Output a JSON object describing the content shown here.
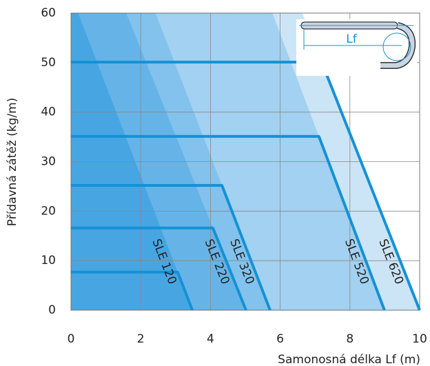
{
  "chart_data": {
    "type": "line",
    "x_label": "Samonosná délka Lf (m)",
    "y_label": "Přídavná zátěž (kg/m)",
    "inset_label": "Lf",
    "xlim": [
      0,
      10
    ],
    "xticks": [
      0,
      2,
      4,
      6,
      8,
      10
    ],
    "ylim": [
      0,
      60
    ],
    "yticks": [
      0,
      10,
      20,
      30,
      40,
      50,
      60
    ],
    "grid": true,
    "series": [
      {
        "name": "SLE 120",
        "color": "#1591d6",
        "x": [
          0,
          3.06,
          3.48
        ],
        "values": [
          7.7,
          7.7,
          0
        ]
      },
      {
        "name": "SLE 220",
        "color": "#1591d6",
        "x": [
          0,
          4.07,
          5.02
        ],
        "values": [
          16.6,
          16.6,
          0
        ]
      },
      {
        "name": "SLE 320",
        "color": "#1591d6",
        "x": [
          0,
          4.33,
          5.71
        ],
        "values": [
          25.2,
          25.2,
          0
        ]
      },
      {
        "name": "SLE 520",
        "color": "#1591d6",
        "x": [
          0,
          7.11,
          8.99
        ],
        "values": [
          35.1,
          35.1,
          0
        ]
      },
      {
        "name": "SLE 620",
        "color": "#1591d6",
        "x": [
          0,
          7.19,
          10
        ],
        "values": [
          50.1,
          50.1,
          0
        ]
      }
    ]
  }
}
